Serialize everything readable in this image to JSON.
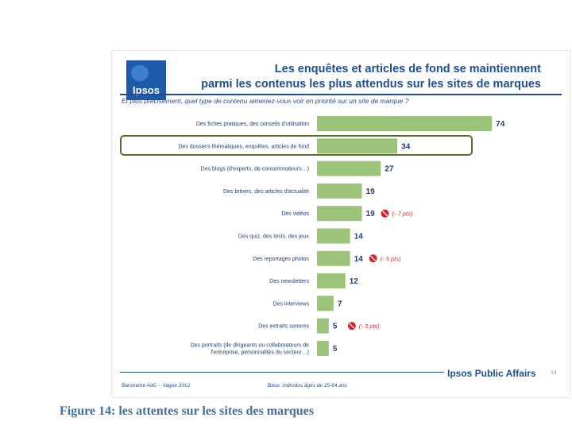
{
  "slide": {
    "logo_text": "Ipsos",
    "title_line1": "Les enquêtes et articles de fond se maintiennent",
    "title_line2": "parmi les contenus les plus attendus sur les sites de marques",
    "subtitle": "Et plus précisément, quel type de contenu aimeriez-vous voir en priorité sur un site de marque ?",
    "footer_left": "Baromètre AdC – Vague 2012",
    "footer_base": "Base: Individus âgés de 15-64 ans",
    "footer_brand": "Ipsos Public Affairs",
    "page_number": "14"
  },
  "chart_data": {
    "type": "bar",
    "orientation": "horizontal",
    "categories": [
      "Des fiches pratiques, des conseils d'utilisation",
      "Des dossiers thématiques, enquêtes, articles de fond",
      "Des blogs (d'experts, de consommateurs…)",
      "Des brèves, des articles d'actualité",
      "Des vidéos",
      "Des quiz, des tests, des jeux",
      "Des reportages photos",
      "Des newsletters",
      "Des interviews",
      "Des extraits sonores",
      "Des portraits (de dirigeants ou collaborateurs de l'entreprise, personnalités du secteur…)"
    ],
    "values": [
      74,
      34,
      27,
      19,
      19,
      14,
      14,
      12,
      7,
      5,
      5
    ],
    "annotations": [
      {
        "category_index": 4,
        "text": "(- 7 pts)"
      },
      {
        "category_index": 6,
        "text": "(- 5 pts)"
      },
      {
        "category_index": 9,
        "text": "(- 3 pts)"
      }
    ],
    "highlighted_index": 1,
    "bar_color": "#9bc47a",
    "annotation_color": "#d9252a",
    "xlim": [
      0,
      80
    ],
    "grid": false
  },
  "caption": "Figure 14: les attentes sur les sites des marques"
}
